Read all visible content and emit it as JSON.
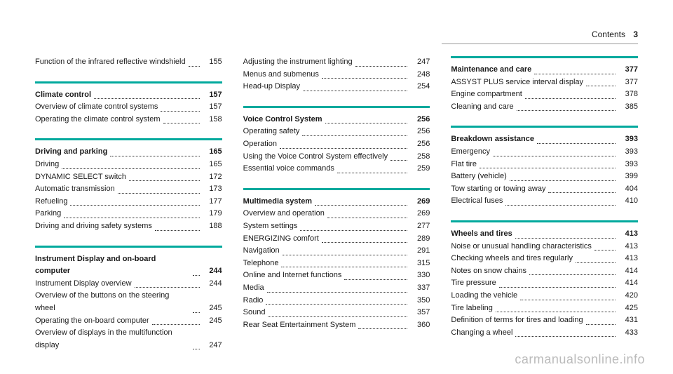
{
  "header": {
    "label": "Contents",
    "page": "3"
  },
  "columns": [
    {
      "sections": [
        {
          "divider": false,
          "items": [
            {
              "label": "Function of the infrared reflective wind­shield",
              "page": "155",
              "bold": false
            }
          ]
        },
        {
          "divider": true,
          "items": [
            {
              "label": "Climate control",
              "page": "157",
              "bold": true
            },
            {
              "label": "Overview of climate control systems",
              "page": "157",
              "bold": false
            },
            {
              "label": "Operating the climate control system",
              "page": "158",
              "bold": false
            }
          ]
        },
        {
          "divider": true,
          "items": [
            {
              "label": "Driving and parking",
              "page": "165",
              "bold": true
            },
            {
              "label": "Driving",
              "page": "165",
              "bold": false
            },
            {
              "label": "DYNAMIC SELECT switch",
              "page": "172",
              "bold": false
            },
            {
              "label": "Automatic transmission",
              "page": "173",
              "bold": false
            },
            {
              "label": "Refueling",
              "page": "177",
              "bold": false
            },
            {
              "label": "Parking",
              "page": "179",
              "bold": false
            },
            {
              "label": "Driving and driving safety systems",
              "page": "188",
              "bold": false
            }
          ]
        },
        {
          "divider": true,
          "items": [
            {
              "label": "Instrument Display and on-board computer",
              "page": "244",
              "bold": true
            },
            {
              "label": "Instrument Display overview",
              "page": "244",
              "bold": false
            },
            {
              "label": "Overview of the buttons on the steering wheel",
              "page": "245",
              "bold": false
            },
            {
              "label": "Operating the on-board computer",
              "page": "245",
              "bold": false
            },
            {
              "label": "Overview of displays in the multifunction display",
              "page": "247",
              "bold": false
            }
          ]
        }
      ]
    },
    {
      "sections": [
        {
          "divider": false,
          "items": [
            {
              "label": "Adjusting the instrument lighting",
              "page": "247",
              "bold": false
            },
            {
              "label": "Menus and submenus",
              "page": "248",
              "bold": false
            },
            {
              "label": "Head-up Display",
              "page": "254",
              "bold": false
            }
          ]
        },
        {
          "divider": true,
          "items": [
            {
              "label": "Voice Control System",
              "page": "256",
              "bold": true
            },
            {
              "label": "Operating safety",
              "page": "256",
              "bold": false
            },
            {
              "label": "Operation",
              "page": "256",
              "bold": false
            },
            {
              "label": "Using the Voice Control System effec­tively",
              "page": "258",
              "bold": false
            },
            {
              "label": "Essential voice commands",
              "page": "259",
              "bold": false
            }
          ]
        },
        {
          "divider": true,
          "items": [
            {
              "label": "Multimedia system",
              "page": "269",
              "bold": true
            },
            {
              "label": "Overview and operation",
              "page": "269",
              "bold": false
            },
            {
              "label": "System settings",
              "page": "277",
              "bold": false
            },
            {
              "label": "ENERGIZING comfort",
              "page": "289",
              "bold": false
            },
            {
              "label": "Navigation",
              "page": "291",
              "bold": false
            },
            {
              "label": "Telephone",
              "page": "315",
              "bold": false
            },
            {
              "label": "Online and Internet functions",
              "page": "330",
              "bold": false
            },
            {
              "label": "Media",
              "page": "337",
              "bold": false
            },
            {
              "label": "Radio",
              "page": "350",
              "bold": false
            },
            {
              "label": "Sound",
              "page": "357",
              "bold": false
            },
            {
              "label": "Rear Seat Entertainment System",
              "page": "360",
              "bold": false
            }
          ]
        }
      ]
    },
    {
      "sections": [
        {
          "divider": true,
          "items": [
            {
              "label": "Maintenance and care",
              "page": "377",
              "bold": true
            },
            {
              "label": "ASSYST PLUS service interval display",
              "page": "377",
              "bold": false
            },
            {
              "label": "Engine compartment",
              "page": "378",
              "bold": false
            },
            {
              "label": "Cleaning and care",
              "page": "385",
              "bold": false
            }
          ]
        },
        {
          "divider": true,
          "items": [
            {
              "label": "Breakdown assistance",
              "page": "393",
              "bold": true
            },
            {
              "label": "Emergency",
              "page": "393",
              "bold": false
            },
            {
              "label": "Flat tire",
              "page": "393",
              "bold": false
            },
            {
              "label": "Battery (vehicle)",
              "page": "399",
              "bold": false
            },
            {
              "label": "Tow starting or towing away",
              "page": "404",
              "bold": false
            },
            {
              "label": "Electrical fuses",
              "page": "410",
              "bold": false
            }
          ]
        },
        {
          "divider": true,
          "items": [
            {
              "label": "Wheels and tires",
              "page": "413",
              "bold": true
            },
            {
              "label": "Noise or unusual handling characteristics",
              "page": "413",
              "bold": false
            },
            {
              "label": "Checking wheels and tires regularly",
              "page": "413",
              "bold": false
            },
            {
              "label": "Notes on snow chains",
              "page": "414",
              "bold": false
            },
            {
              "label": "Tire pressure",
              "page": "414",
              "bold": false
            },
            {
              "label": "Loading the vehicle",
              "page": "420",
              "bold": false
            },
            {
              "label": "Tire labeling",
              "page": "425",
              "bold": false
            },
            {
              "label": "Definition of terms for tires and loading",
              "page": "431",
              "bold": false
            },
            {
              "label": "Changing a wheel",
              "page": "433",
              "bold": false
            }
          ]
        }
      ]
    }
  ],
  "watermark": "carmanualsonline.info",
  "colors": {
    "divider": "#00a99d",
    "text": "#1a1a1a",
    "watermark": "#bbb"
  }
}
